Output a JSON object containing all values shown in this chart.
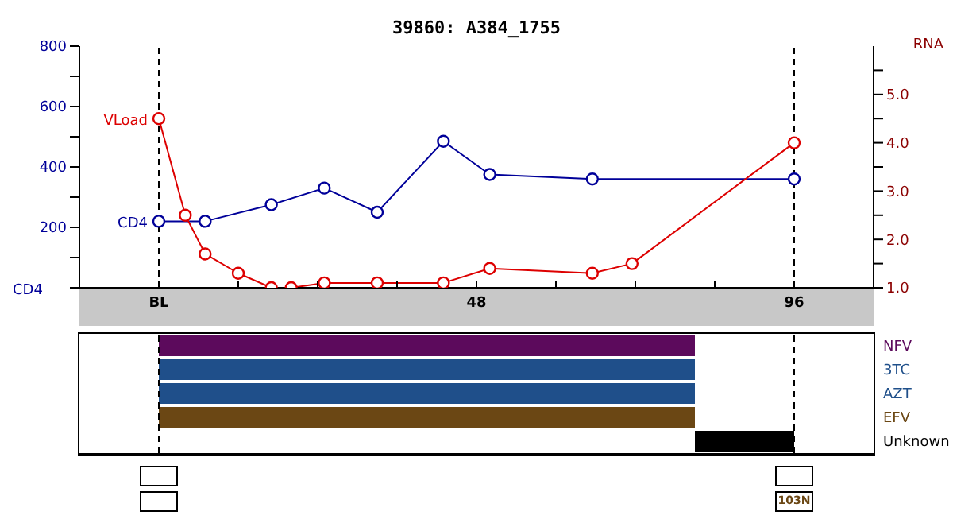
{
  "chart_data": [
    {
      "type": "line",
      "title": "39860: A384_1755",
      "ylabel": "CD4",
      "y2label": "RNA",
      "marker": "circle",
      "line_style": "solid",
      "series": [
        {
          "name": "CD4",
          "color": "#000099",
          "x": [
            0,
            7,
            17,
            25,
            33,
            43,
            50,
            65.5,
            96
          ],
          "values": [
            220,
            220,
            275,
            330,
            250,
            485,
            375,
            360,
            360
          ]
        },
        {
          "name": "VLoad",
          "color": "#dd0000",
          "axis": "y2",
          "x": [
            0,
            4,
            7,
            12,
            17,
            20,
            25,
            33,
            43,
            50,
            65.5,
            71.5,
            96
          ],
          "values": [
            4.5,
            2.5,
            1.7,
            1.3,
            1.0,
            1.0,
            1.1,
            1.1,
            1.1,
            1.4,
            1.3,
            1.5,
            4.0
          ]
        }
      ],
      "xlim": [
        -12,
        108
      ],
      "xticks": [
        {
          "value": -12,
          "label": null
        },
        {
          "value": 0,
          "label": "BL"
        },
        {
          "value": 12,
          "label": null
        },
        {
          "value": 24,
          "label": null
        },
        {
          "value": 36,
          "label": null
        },
        48,
        {
          "value": 60,
          "label": null
        },
        {
          "value": 72,
          "label": null
        },
        {
          "value": 84,
          "label": null
        },
        96,
        {
          "value": 108,
          "label": null
        }
      ],
      "ylim": [
        0,
        800
      ],
      "yticks": [
        {
          "value": 0,
          "label": null
        },
        {
          "value": 100,
          "label": null
        },
        200,
        {
          "value": 300,
          "label": null
        },
        400,
        {
          "value": 500,
          "label": null
        },
        600,
        {
          "value": 700,
          "label": null
        },
        800
      ],
      "y2lim": [
        1,
        6
      ],
      "y2ticks": [
        {
          "value": 1,
          "label": "1.0"
        },
        {
          "value": 1.5,
          "label": null
        },
        {
          "value": 2,
          "label": "2.0"
        },
        {
          "value": 2.5,
          "label": null
        },
        {
          "value": 3,
          "label": "3.0"
        },
        {
          "value": 3.5,
          "label": null
        },
        {
          "value": 4,
          "label": "4.0"
        },
        {
          "value": 4.5,
          "label": null
        },
        {
          "value": 5,
          "label": "5.0"
        },
        {
          "value": 5.5,
          "label": null
        }
      ],
      "ref_lines": [
        {
          "axis": "x",
          "value": 0,
          "color": "#000000",
          "line_style": "dashed"
        },
        {
          "axis": "x",
          "value": 96,
          "color": "#000000",
          "line_style": "dashed"
        }
      ]
    },
    {
      "type": "bar",
      "orientation": "horizontal",
      "categories": [
        "NFV",
        "3TC",
        "AZT",
        "EFV",
        "Unknown"
      ],
      "base": [
        0,
        0,
        0,
        0,
        81
      ],
      "values": [
        81,
        81,
        81,
        81,
        15
      ],
      "colors": [
        "#5c0a5c",
        "#1f4f8a",
        "#1f4f8a",
        "#6b4714",
        "#000000"
      ],
      "xlim": [
        -12,
        108
      ],
      "tick_labels": "y",
      "ref_lines": [
        {
          "axis": "x",
          "value": 0,
          "color": "#000000",
          "line_style": "dashed"
        },
        {
          "axis": "x",
          "value": 96,
          "color": "#000000",
          "line_style": "dashed"
        }
      ],
      "annotations": [
        "103N"
      ]
    }
  ]
}
